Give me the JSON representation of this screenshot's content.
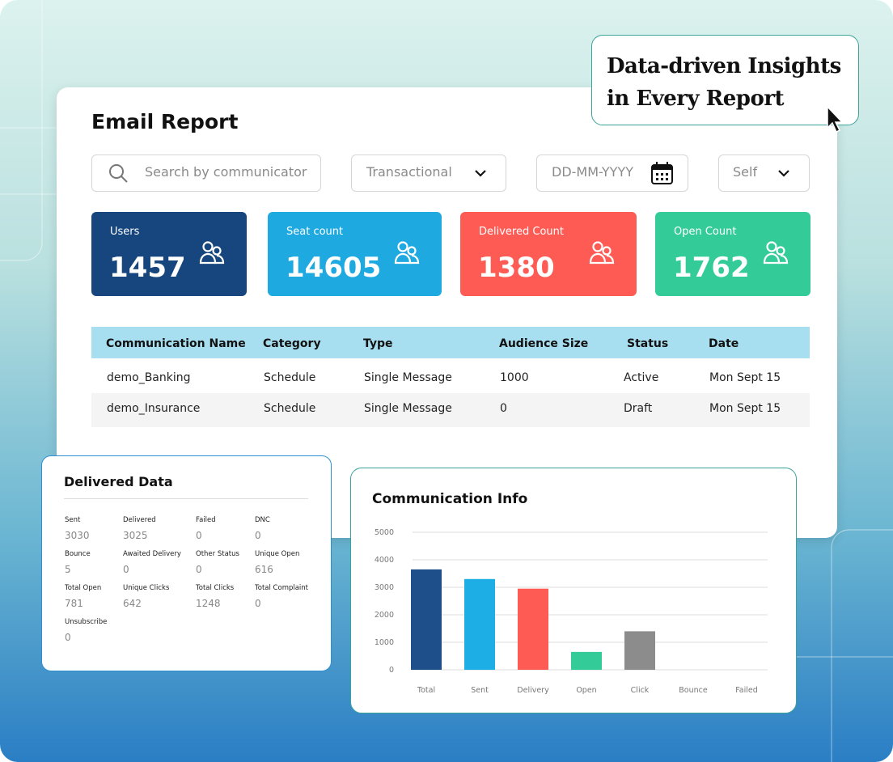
{
  "callout": "Data-driven Insights in Every Report",
  "report": {
    "title": "Email Report",
    "filters": {
      "search": "Search by communicator",
      "type": "Transactional",
      "date": "DD-MM-YYYY",
      "scope": "Self"
    },
    "stats": [
      {
        "label": "Users",
        "value": 1457,
        "color": "#16467d"
      },
      {
        "label": "Seat count",
        "value": 14605,
        "color": "#1ea9e1"
      },
      {
        "label": "Delivered Count",
        "value": 1380,
        "color": "#ff5b55"
      },
      {
        "label": "Open Count",
        "value": 1762,
        "color": "#33cc99"
      }
    ],
    "table": {
      "columns": [
        "Communication Name",
        "Category",
        "Type",
        "Audience Size",
        "Status",
        "Date"
      ],
      "rows": [
        [
          "demo_Banking",
          "Schedule",
          "Single Message",
          "1000",
          "Active",
          "Mon Sept 15"
        ],
        [
          "demo_Insurance",
          "Schedule",
          "Single Message",
          "0",
          "Draft",
          "Mon Sept 15"
        ]
      ]
    }
  },
  "delivered": {
    "title": "Delivered Data",
    "items": [
      {
        "label": "Sent",
        "value": 3030
      },
      {
        "label": "Delivered",
        "value": 3025
      },
      {
        "label": "Failed",
        "value": 0
      },
      {
        "label": "DNC",
        "value": 0
      },
      {
        "label": "Bounce",
        "value": 5
      },
      {
        "label": "Awaited Delivery",
        "value": 0
      },
      {
        "label": "Other Status",
        "value": 0
      },
      {
        "label": "Unique Open",
        "value": 616
      },
      {
        "label": "Total Open",
        "value": 781
      },
      {
        "label": "Unique Clicks",
        "value": 642
      },
      {
        "label": "Total Clicks",
        "value": 1248
      },
      {
        "label": "Total Complaint",
        "value": 0
      },
      {
        "label": "Unsubscribe",
        "value": 0
      }
    ]
  },
  "chart": {
    "type": "bar",
    "title": "Communication Info",
    "categories": [
      "Total",
      "Sent",
      "Delivery",
      "Open",
      "Click",
      "Bounce",
      "Failed"
    ],
    "values": [
      3650,
      3300,
      2950,
      650,
      1400,
      0,
      0
    ],
    "colors": [
      "#1f4f8a",
      "#1eaee6",
      "#ff5b55",
      "#33cc99",
      "#8c8c8c",
      "#cccccc",
      "#cccccc"
    ],
    "ylim": [
      0,
      5000
    ],
    "yticks": [
      0,
      1000,
      2000,
      3000,
      4000,
      5000
    ],
    "grid": true
  }
}
